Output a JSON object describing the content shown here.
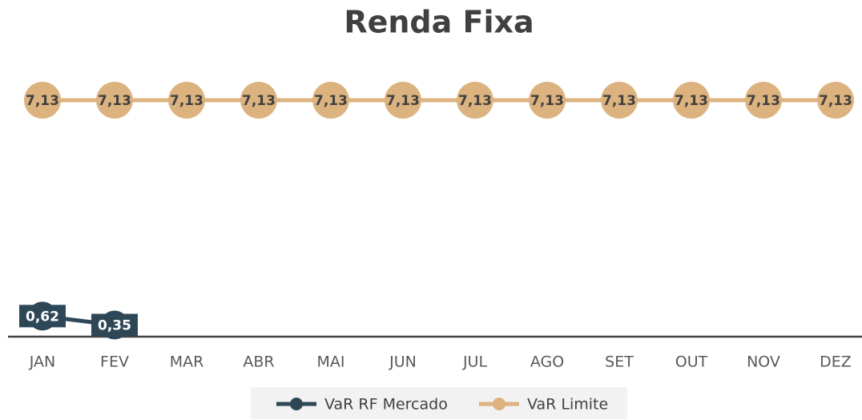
{
  "chart_data": {
    "type": "line",
    "title": "Renda Fixa",
    "categories": [
      "JAN",
      "FEV",
      "MAR",
      "ABR",
      "MAI",
      "JUN",
      "JUL",
      "AGO",
      "SET",
      "OUT",
      "NOV",
      "DEZ"
    ],
    "series": [
      {
        "name": "VaR RF Mercado",
        "color": "#2e4756",
        "values": [
          0.62,
          0.35,
          null,
          null,
          null,
          null,
          null,
          null,
          null,
          null,
          null,
          null
        ],
        "value_labels": [
          "0,62",
          "0,35",
          null,
          null,
          null,
          null,
          null,
          null,
          null,
          null,
          null,
          null
        ]
      },
      {
        "name": "VaR Limite",
        "color": "#dcb27f",
        "values": [
          7.13,
          7.13,
          7.13,
          7.13,
          7.13,
          7.13,
          7.13,
          7.13,
          7.13,
          7.13,
          7.13,
          7.13
        ],
        "value_labels": [
          "7,13",
          "7,13",
          "7,13",
          "7,13",
          "7,13",
          "7,13",
          "7,13",
          "7,13",
          "7,13",
          "7,13",
          "7,13",
          "7,13"
        ]
      }
    ],
    "legend": "bottom"
  }
}
